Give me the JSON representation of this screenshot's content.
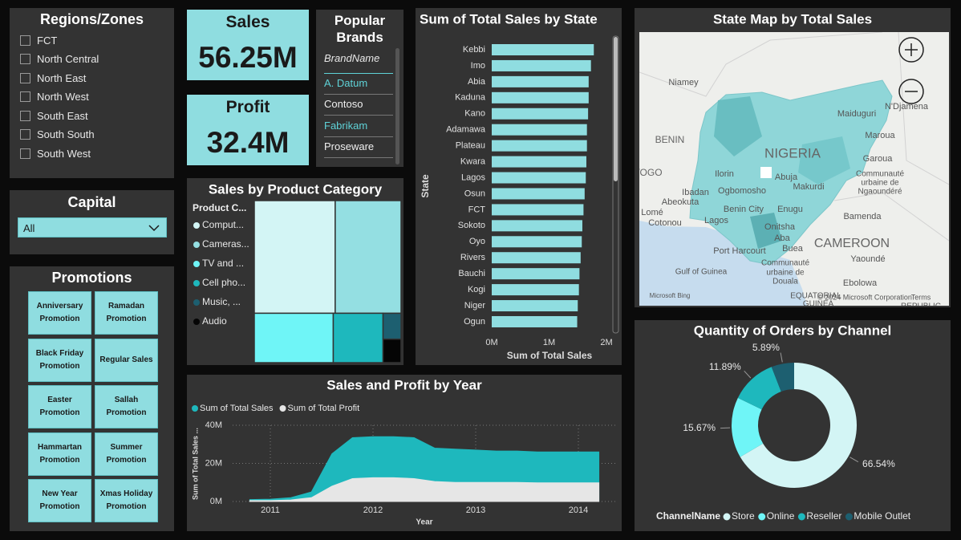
{
  "regions": {
    "title": "Regions/Zones",
    "items": [
      "FCT",
      "North Central",
      "North East",
      "North West",
      "South East",
      "South South",
      "South West"
    ]
  },
  "capital": {
    "title": "Capital",
    "selected": "All"
  },
  "promotions": {
    "title": "Promotions",
    "items": [
      "Anniversary Promotion",
      "Ramadan Promotion",
      "Black Friday Promotion",
      "Regular Sales",
      "Easter Promotion",
      "Sallah Promotion",
      "Hammartan Promotion",
      "Summer Promotion",
      "New Year Promotion",
      "Xmas Holiday Promotion"
    ]
  },
  "sales_card": {
    "label": "Sales",
    "value": "56.25M"
  },
  "profit_card": {
    "label": "Profit",
    "value": "32.4M"
  },
  "brands": {
    "title": "Popular Brands",
    "header": "BrandName",
    "items": [
      {
        "name": "A. Datum",
        "highlighted": true
      },
      {
        "name": "Contoso",
        "highlighted": false
      },
      {
        "name": "Fabrikam",
        "highlighted": true
      },
      {
        "name": "Proseware",
        "highlighted": false
      }
    ]
  },
  "map": {
    "title": "State Map by Total Sales",
    "labels": [
      "Niamey",
      "N'Djamena",
      "Maiduguri",
      "Maroua",
      "BENIN",
      "NIGERIA",
      "Garoua",
      "TOGO",
      "Ilorin",
      "Abuja",
      "Communauté",
      "urbaine de",
      "Ngaoundéré",
      "Ibadan",
      "Ogbomosho",
      "Makurdi",
      "Abeokuta",
      "Lomé",
      "Cotonou",
      "Lagos",
      "Benin City",
      "Enugu",
      "Bamenda",
      "Onitsha",
      "Aba",
      "CAMEROON",
      "Port Harcourt",
      "Buea",
      "Yaoundé",
      "Communauté",
      "urbaine de",
      "Douala",
      "Gulf of Guinea",
      "Ebolowa",
      "EQUATORIAL",
      "GUINEA",
      "Microsoft Bing",
      "© 2024 Microsoft Corporation",
      "Terms",
      "REPUBLIC"
    ]
  },
  "chart_data": [
    {
      "type": "treemap",
      "title": "Sales by Product Category",
      "legend_title": "Product C...",
      "categories": [
        "Comput...",
        "Cameras...",
        "TV and ...",
        "Cell pho...",
        "Music, ...",
        "Audio"
      ],
      "values": [
        21500000,
        17500000,
        9200000,
        5800000,
        1100000,
        1000000
      ],
      "colors": [
        "#d3f5f5",
        "#94dfe2",
        "#6ff5f7",
        "#1eb8bd",
        "#1d5f70",
        "#050505"
      ]
    },
    {
      "type": "bar",
      "orientation": "horizontal",
      "title": "Sum of Total Sales by State",
      "x_label": "Sum of Total Sales",
      "y_label": "State",
      "categories": [
        "Kebbi",
        "Imo",
        "Abia",
        "Kaduna",
        "Kano",
        "Adamawa",
        "Plateau",
        "Kwara",
        "Lagos",
        "Osun",
        "FCT",
        "Sokoto",
        "Oyo",
        "Rivers",
        "Bauchi",
        "Kogi",
        "Niger",
        "Ogun"
      ],
      "values": [
        1780000,
        1730000,
        1690000,
        1690000,
        1680000,
        1660000,
        1660000,
        1650000,
        1640000,
        1620000,
        1600000,
        1580000,
        1570000,
        1550000,
        1530000,
        1520000,
        1500000,
        1490000
      ],
      "color": "#8fdde0",
      "xlim": [
        0,
        2000000
      ],
      "xticks": [
        {
          "value": 0,
          "label": "0M"
        },
        {
          "value": 1000000,
          "label": "1M"
        },
        {
          "value": 2000000,
          "label": "2M"
        }
      ],
      "grid": false
    },
    {
      "type": "area",
      "title": "Sales and Profit by Year",
      "x_label": "Year",
      "y_label": "Sum of Total Sales ...",
      "x": [
        2010.8,
        2011.0,
        2011.2,
        2011.4,
        2011.6,
        2011.8,
        2012.0,
        2012.2,
        2012.4,
        2012.6,
        2012.8,
        2013.0,
        2013.2,
        2013.4,
        2013.6,
        2013.8,
        2014.0,
        2014.2
      ],
      "series": [
        {
          "name": "Sum of Total Sales",
          "color": "#1eb8bd",
          "values": [
            1000000,
            1200000,
            2000000,
            5000000,
            25000000,
            33500000,
            34000000,
            34000000,
            33500000,
            28000000,
            27500000,
            27000000,
            26500000,
            26500000,
            26000000,
            26000000,
            26000000,
            26000000
          ]
        },
        {
          "name": "Sum of Total Profit",
          "color": "#e6e6e6",
          "values": [
            500000,
            500000,
            800000,
            2000000,
            8000000,
            12000000,
            12500000,
            12500000,
            12000000,
            10500000,
            10000000,
            10000000,
            10000000,
            10000000,
            9800000,
            9800000,
            9800000,
            9800000
          ]
        }
      ],
      "xlim": [
        2010.8,
        2014.2
      ],
      "xticks": [
        2011,
        2012,
        2013,
        2014
      ],
      "ylim": [
        0,
        40000000
      ],
      "yticks": [
        {
          "value": 0,
          "label": "0M"
        },
        {
          "value": 20000000,
          "label": "20M"
        },
        {
          "value": 40000000,
          "label": "40M"
        }
      ],
      "grid": true
    },
    {
      "type": "donut",
      "title": "Quantity of Orders by Channel",
      "legend_title": "ChannelName",
      "categories": [
        "Store",
        "Online",
        "Reseller",
        "Mobile Outlet"
      ],
      "values": [
        66.54,
        15.67,
        11.89,
        5.89
      ],
      "value_labels": [
        "66.54%",
        "15.67%",
        "11.89%",
        "5.89%"
      ],
      "colors": [
        "#d3f5f5",
        "#6ff5f7",
        "#1eb8bd",
        "#1d5f70"
      ]
    }
  ]
}
